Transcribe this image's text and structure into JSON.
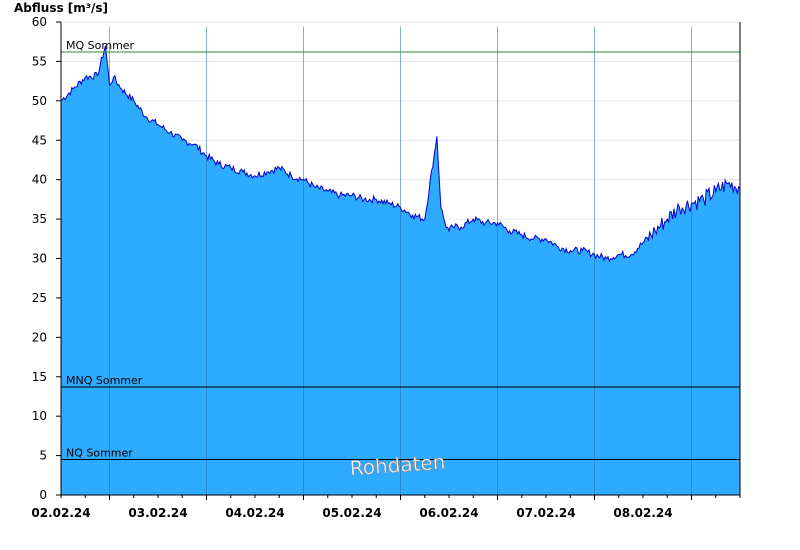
{
  "chart_data": {
    "type": "area",
    "ylabel": "Abfluss [m³/s]",
    "ylim": [
      0,
      60
    ],
    "yticks": [
      0,
      5,
      10,
      15,
      20,
      25,
      30,
      35,
      40,
      45,
      50,
      55,
      60
    ],
    "xlim": [
      "01.02.24 12:00",
      "08.02.24 12:00"
    ],
    "xtick_labels": [
      "02.02.24",
      "03.02.24",
      "04.02.24",
      "05.02.24",
      "06.02.24",
      "07.02.24",
      "08.02.24"
    ],
    "fill_color": "#2eaaff",
    "line_color": "#0000cc",
    "watermark": "Rohdaten",
    "reference_lines": [
      {
        "label": "MQ Sommer",
        "value": 56.2,
        "color": "#2e8b2e"
      },
      {
        "label": "MNQ Sommer",
        "value": 13.7,
        "color": "#000000"
      },
      {
        "label": "NQ Sommer",
        "value": 4.5,
        "color": "#000000"
      }
    ],
    "series": [
      {
        "x_hours": [
          0,
          3,
          6,
          9,
          11,
          12,
          13,
          15,
          18,
          21,
          24,
          27,
          30,
          33,
          36,
          39,
          42,
          45,
          48,
          51,
          54,
          57,
          60,
          63,
          66,
          69,
          72,
          75,
          78,
          81,
          84,
          87,
          90,
          93,
          94,
          95,
          96,
          97,
          99,
          102,
          105,
          108,
          111,
          114,
          117,
          120,
          123,
          126,
          129,
          132,
          135,
          138,
          141,
          144,
          147,
          150,
          153,
          156,
          159,
          162,
          165,
          168
        ],
        "values": [
          50.0,
          51.5,
          53.0,
          53.2,
          57.0,
          52.0,
          53.0,
          51.5,
          50.0,
          48.0,
          47.0,
          46.0,
          45.0,
          44.5,
          43.0,
          42.0,
          41.5,
          41.0,
          40.5,
          41.0,
          41.5,
          40.5,
          40.0,
          39.0,
          38.5,
          38.0,
          38.0,
          37.5,
          37.5,
          37.0,
          36.5,
          35.5,
          35.0,
          45.5,
          36.5,
          34.5,
          33.5,
          34.0,
          34.0,
          35.0,
          34.5,
          34.5,
          33.5,
          33.0,
          32.5,
          32.5,
          31.5,
          31.0,
          31.0,
          30.5,
          30.0,
          30.5,
          30.5,
          32.0,
          33.5,
          35.0,
          36.5,
          37.0,
          37.5,
          38.5,
          39.5,
          39.0
        ]
      }
    ]
  }
}
